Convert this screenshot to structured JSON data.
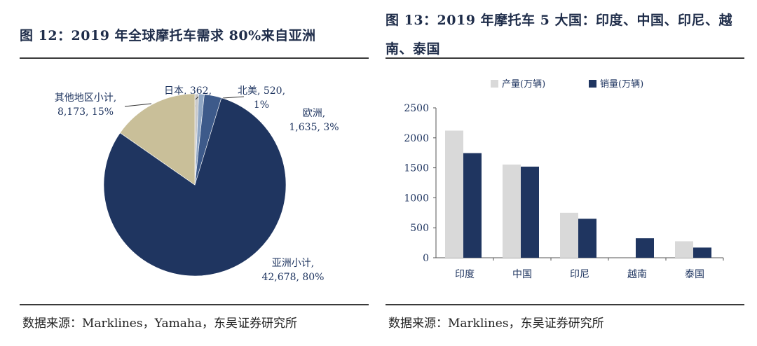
{
  "left": {
    "title": "图 12：2019 年全球摩托车需求 80%来自亚洲",
    "source": "数据来源：Marklines，Yamaha，东吴证券研究所"
  },
  "right": {
    "title_line1": "图 13：2019 年摩托车 5 大国：印度、中国、印尼、越",
    "title_line2": "南、泰国",
    "source": "数据来源：Marklines，东吴证券研究所"
  },
  "chart_data": [
    {
      "type": "pie",
      "slices": [
        {
          "name": "日本",
          "value": 362,
          "percent": "1%",
          "label_line1": "日本, 362,",
          "label_line2": "1%",
          "color": "#c9c9c9"
        },
        {
          "name": "北美",
          "value": 520,
          "percent": "1%",
          "label_line1": "北美, 520,",
          "label_line2": "1%",
          "color": "#8fa6c4"
        },
        {
          "name": "欧洲",
          "value": 1635,
          "percent": "3%",
          "label_line1": "欧洲,",
          "label_line2": "1,635, 3%",
          "color": "#3d5a8a"
        },
        {
          "name": "亚洲小计",
          "value": 42678,
          "percent": "80%",
          "label_line1": "亚洲小计,",
          "label_line2": "42,678, 80%",
          "color": "#1f3560"
        },
        {
          "name": "其他地区小计",
          "value": 8173,
          "percent": "15%",
          "label_line1": "其他地区小计,",
          "label_line2": "8,173, 15%",
          "color": "#c9bf99"
        }
      ]
    },
    {
      "type": "bar",
      "categories": [
        "印度",
        "中国",
        "印尼",
        "越南",
        "泰国"
      ],
      "series": [
        {
          "name": "产量(万辆)",
          "values": [
            2120,
            1555,
            750,
            0,
            275
          ],
          "color": "#d9d9d9"
        },
        {
          "name": "销量(万辆)",
          "values": [
            1745,
            1520,
            650,
            325,
            170
          ],
          "color": "#1f3560"
        }
      ],
      "ylim": [
        0,
        2500
      ],
      "yticks": [
        "0",
        "500",
        "1000",
        "1500",
        "2000",
        "2500"
      ],
      "grid": false,
      "legend": "top"
    }
  ]
}
